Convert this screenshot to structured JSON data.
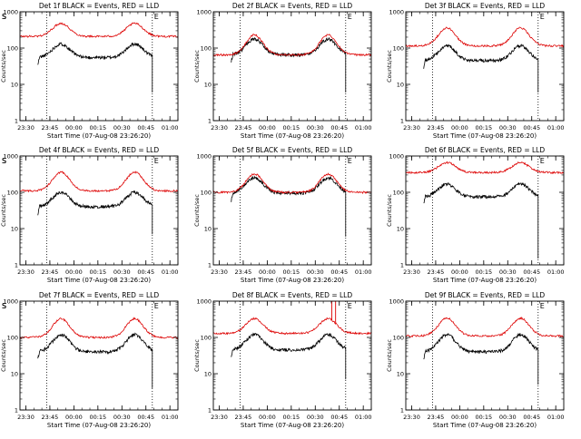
{
  "figure": {
    "xlabel": "Start Time (07-Aug-08 23:26:20)",
    "ylabel": "Counts/sec",
    "x_ticks": [
      "23:30",
      "23:45",
      "00:00",
      "00:15",
      "00:30",
      "00:45",
      "01:00"
    ],
    "y_ticks": [
      "1",
      "10",
      "100",
      "1000"
    ],
    "marker_labels": [
      "S",
      "E"
    ],
    "colors": {
      "events": "#000000",
      "lld": "#dd0000",
      "axes": "#000000",
      "background": "#ffffff"
    }
  },
  "chart_data": [
    {
      "type": "line",
      "title": "Det 1f BLACK = Events, RED = LLD",
      "y_scale": "log",
      "ylim": [
        1,
        1000
      ],
      "x_range": [
        "23:26:20",
        "01:05:00"
      ],
      "markers": [
        {
          "label": "S",
          "x": "23:43:00"
        },
        {
          "label": "E",
          "x": "00:49:00"
        }
      ],
      "series": [
        {
          "name": "Events",
          "color": "#000000",
          "baseline": 55,
          "peak": 130,
          "start": "23:37:30",
          "end": "00:49:00",
          "drop": 6
        },
        {
          "name": "LLD",
          "color": "#dd0000",
          "baseline": 210,
          "peak": 480
        }
      ]
    },
    {
      "type": "line",
      "title": "Det 2f BLACK = Events, RED = LLD",
      "y_scale": "log",
      "ylim": [
        1,
        1000
      ],
      "x_range": [
        "23:26:20",
        "01:05:00"
      ],
      "markers": [
        {
          "label": "S",
          "x": "23:43:00"
        },
        {
          "label": "E",
          "x": "00:49:00"
        }
      ],
      "series": [
        {
          "name": "Events",
          "color": "#000000",
          "baseline": 65,
          "peak": 175,
          "start": "23:37:30",
          "end": "00:49:00",
          "drop": 6
        },
        {
          "name": "LLD",
          "color": "#dd0000",
          "baseline": 65,
          "peak": 230
        }
      ]
    },
    {
      "type": "line",
      "title": "Det 3f BLACK = Events, RED = LLD",
      "y_scale": "log",
      "ylim": [
        1,
        1000
      ],
      "x_range": [
        "23:26:20",
        "01:05:00"
      ],
      "markers": [
        {
          "label": "S",
          "x": "23:43:00"
        },
        {
          "label": "E",
          "x": "00:49:00"
        }
      ],
      "series": [
        {
          "name": "Events",
          "color": "#000000",
          "baseline": 45,
          "peak": 115,
          "start": "23:37:30",
          "end": "00:49:00",
          "drop": 6
        },
        {
          "name": "LLD",
          "color": "#dd0000",
          "baseline": 115,
          "peak": 360
        }
      ]
    },
    {
      "type": "line",
      "title": "Det 4f BLACK = Events, RED = LLD",
      "y_scale": "log",
      "ylim": [
        1,
        1000
      ],
      "x_range": [
        "23:26:20",
        "01:05:00"
      ],
      "markers": [
        {
          "label": "S",
          "x": "23:43:00"
        },
        {
          "label": "E",
          "x": "00:49:00"
        }
      ],
      "series": [
        {
          "name": "Events",
          "color": "#000000",
          "baseline": 40,
          "peak": 100,
          "start": "23:37:30",
          "end": "00:49:00",
          "drop": 7
        },
        {
          "name": "LLD",
          "color": "#dd0000",
          "baseline": 110,
          "peak": 360
        }
      ]
    },
    {
      "type": "line",
      "title": "Det 5f BLACK = Events, RED = LLD",
      "y_scale": "log",
      "ylim": [
        1,
        1000
      ],
      "x_range": [
        "23:26:20",
        "01:05:00"
      ],
      "markers": [
        {
          "label": "S",
          "x": "23:43:00"
        },
        {
          "label": "E",
          "x": "00:49:00"
        }
      ],
      "series": [
        {
          "name": "Events",
          "color": "#000000",
          "baseline": 95,
          "peak": 250,
          "start": "23:37:30",
          "end": "00:49:00",
          "drop": 6
        },
        {
          "name": "LLD",
          "color": "#dd0000",
          "baseline": 100,
          "peak": 320
        }
      ]
    },
    {
      "type": "line",
      "title": "Det 6f BLACK = Events, RED = LLD",
      "y_scale": "log",
      "ylim": [
        1,
        1000
      ],
      "x_range": [
        "23:26:20",
        "01:05:00"
      ],
      "markers": [
        {
          "label": "S",
          "x": "23:43:00"
        },
        {
          "label": "E",
          "x": "00:49:00"
        }
      ],
      "series": [
        {
          "name": "Events",
          "color": "#000000",
          "baseline": 75,
          "peak": 170,
          "start": "23:37:30",
          "end": "00:49:00",
          "drop": 1.5
        },
        {
          "name": "LLD",
          "color": "#dd0000",
          "baseline": 350,
          "peak": 660
        }
      ]
    },
    {
      "type": "line",
      "title": "Det 7f BLACK = Events, RED = LLD",
      "y_scale": "log",
      "ylim": [
        1,
        1000
      ],
      "x_range": [
        "23:26:20",
        "01:05:00"
      ],
      "markers": [
        {
          "label": "S",
          "x": "23:43:00"
        },
        {
          "label": "E",
          "x": "00:49:00"
        }
      ],
      "series": [
        {
          "name": "Events",
          "color": "#000000",
          "baseline": 40,
          "peak": 120,
          "start": "23:37:30",
          "end": "00:49:00",
          "drop": 4
        },
        {
          "name": "LLD",
          "color": "#dd0000",
          "baseline": 100,
          "peak": 330
        }
      ]
    },
    {
      "type": "line",
      "title": "Det 8f BLACK = Events, RED = LLD",
      "y_scale": "log",
      "ylim": [
        1,
        1000
      ],
      "x_range": [
        "23:26:20",
        "01:05:00"
      ],
      "markers": [
        {
          "label": "S",
          "x": "23:43:00"
        },
        {
          "label": "E",
          "x": "00:49:00"
        }
      ],
      "series": [
        {
          "name": "Events",
          "color": "#000000",
          "baseline": 45,
          "peak": 120,
          "start": "23:37:30",
          "end": "00:49:00",
          "drop": 7
        },
        {
          "name": "LLD",
          "color": "#dd0000",
          "baseline": 130,
          "peak": 330,
          "spike": {
            "x": "00:41:30",
            "value": 1000
          }
        }
      ]
    },
    {
      "type": "line",
      "title": "Det 9f BLACK = Events, RED = LLD",
      "y_scale": "log",
      "ylim": [
        1,
        1000
      ],
      "x_range": [
        "23:26:20",
        "01:05:00"
      ],
      "markers": [
        {
          "label": "S",
          "x": "23:43:00"
        },
        {
          "label": "E",
          "x": "00:49:00"
        }
      ],
      "series": [
        {
          "name": "Events",
          "color": "#000000",
          "baseline": 40,
          "peak": 120,
          "start": "23:37:30",
          "end": "00:49:00",
          "drop": 5
        },
        {
          "name": "LLD",
          "color": "#dd0000",
          "baseline": 110,
          "peak": 340
        }
      ]
    }
  ]
}
